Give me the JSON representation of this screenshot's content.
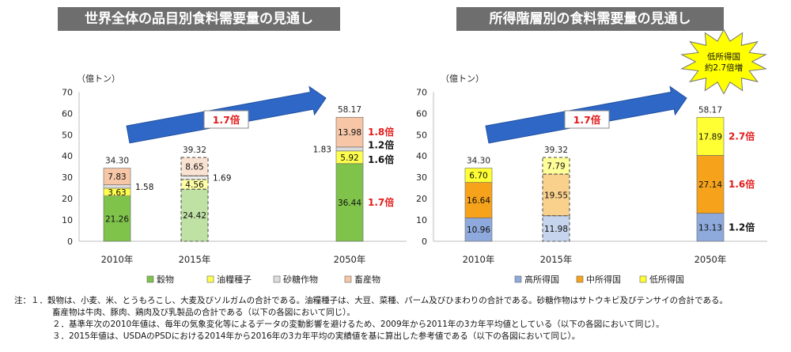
{
  "colors": {
    "grain": "#7fc34a",
    "oilseed": "#ffff4d",
    "sugar": "#dcdcdc",
    "livestock": "#f6c6a6",
    "high": "#8eaadc",
    "middle": "#f6a21b",
    "low": "#ffff33",
    "title_bg": "#6e6e6e",
    "arrow": "#2f67c6",
    "red": "#e41b1b"
  },
  "chart_data": [
    {
      "type": "bar",
      "stacked": true,
      "title": "世界全体の品目別食料需要量の見通し",
      "ylabel": "（億トン）",
      "ylim": [
        0,
        70
      ],
      "yticks": [
        "0",
        "10",
        "20",
        "30",
        "40",
        "50",
        "60",
        "70"
      ],
      "grid": false,
      "legend_position": "bottom",
      "categories": [
        "2010年",
        "2015年",
        "2050年"
      ],
      "series": [
        {
          "name": "穀物",
          "values": [
            21.26,
            24.42,
            36.44
          ],
          "labels": [
            "21.26",
            "24.42",
            "36.44"
          ]
        },
        {
          "name": "油糧種子",
          "values": [
            3.63,
            4.56,
            5.92
          ],
          "labels": [
            "3.63",
            "4.56",
            "5.92"
          ]
        },
        {
          "name": "砂糖作物",
          "values": [
            1.58,
            1.69,
            1.83
          ],
          "labels": [
            "1.58",
            "1.69",
            "1.83"
          ]
        },
        {
          "name": "畜産物",
          "values": [
            7.83,
            8.65,
            13.98
          ],
          "labels": [
            "7.83",
            "8.65",
            "13.98"
          ]
        }
      ],
      "totals": [
        "34.30",
        "39.32",
        "58.17"
      ],
      "multipliers": [
        {
          "series": "畜産物",
          "text": "1.8倍",
          "color": "red"
        },
        {
          "series": "砂糖作物",
          "text": "1.2倍",
          "color": "black"
        },
        {
          "series": "油糧種子",
          "text": "1.6倍",
          "color": "black"
        },
        {
          "series": "穀物",
          "text": "1.7倍",
          "color": "red"
        }
      ],
      "arrow_label": "1.7倍"
    },
    {
      "type": "bar",
      "stacked": true,
      "title": "所得階層別の食料需要量の見通し",
      "ylabel": "（億トン）",
      "ylim": [
        0,
        70
      ],
      "yticks": [
        "0",
        "10",
        "20",
        "30",
        "40",
        "50",
        "60",
        "70"
      ],
      "grid": false,
      "legend_position": "bottom",
      "categories": [
        "2010年",
        "2015年",
        "2050年"
      ],
      "series": [
        {
          "name": "高所得国",
          "values": [
            10.96,
            11.98,
            13.13
          ],
          "labels": [
            "10.96",
            "11.98",
            "13.13"
          ]
        },
        {
          "name": "中所得国",
          "values": [
            16.64,
            19.55,
            27.14
          ],
          "labels": [
            "16.64",
            "19.55",
            "27.14"
          ]
        },
        {
          "name": "低所得国",
          "values": [
            6.7,
            7.79,
            17.89
          ],
          "labels": [
            "6.70",
            "7.79",
            "17.89"
          ]
        }
      ],
      "totals": [
        "34.30",
        "39.32",
        "58.17"
      ],
      "multipliers": [
        {
          "series": "低所得国",
          "text": "2.7倍",
          "color": "red"
        },
        {
          "series": "中所得国",
          "text": "1.6倍",
          "color": "red"
        },
        {
          "series": "高所得国",
          "text": "1.2倍",
          "color": "black"
        }
      ],
      "arrow_label": "1.7倍",
      "callout": [
        "低所得国",
        "約2.7倍増"
      ]
    }
  ],
  "notes": [
    "注：１．穀物は、小麦、米、とうもろこし、大麦及びソルガムの合計である。油糧種子は、大豆、菜種、パーム及びひまわりの合計である。砂糖作物はサトウキビ及びテンサイの合計である。",
    "畜産物は牛肉、豚肉、鶏肉及び乳製品の合計である（以下の各図において同じ）。",
    "２．基準年次の2010年値は、毎年の気象変化等によるデータの変動影響を避けるため、2009年から2011年の3カ年平均値としている（以下の各図において同じ）。",
    "３．2015年値は、USDAのPSDにおける2014年から2016年の3カ年平均の実績値を基に算出した参考値である（以下の各図において同じ）。"
  ]
}
